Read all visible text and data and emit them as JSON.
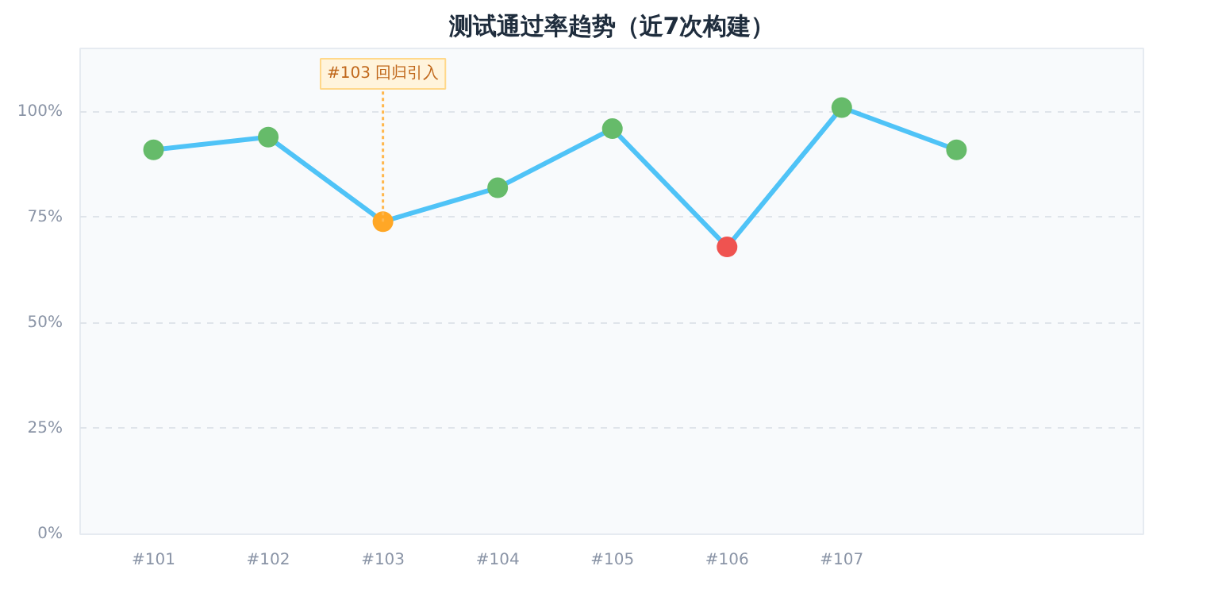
{
  "chart_data": {
    "type": "line",
    "title": "测试通过率趋势（近7次构建）",
    "categories": [
      "#101",
      "#102",
      "#103",
      "#104",
      "#105",
      "#106",
      "#107",
      null
    ],
    "series": [
      {
        "color": "#4fc3f7",
        "colors": [
          "#66bb6a",
          "#66bb6a",
          "#ffa726",
          "#66bb6a",
          "#66bb6a",
          "#ef5350",
          "#66bb6a",
          "#66bb6a"
        ],
        "values": [
          91,
          94,
          74,
          82,
          96,
          68,
          101,
          91
        ]
      }
    ],
    "annotations": [
      {
        "text": "#103 回归引入",
        "x": "#103",
        "y": 74
      }
    ],
    "ylim": [
      0,
      115
    ],
    "yticks": [
      {
        "value": 0,
        "label": "0%"
      },
      {
        "value": 25,
        "label": "25%"
      },
      {
        "value": 50,
        "label": "50%"
      },
      {
        "value": 75,
        "label": "75%"
      },
      {
        "value": 100,
        "label": "100%"
      }
    ],
    "grid": "y",
    "marker": "circle",
    "line_style": "solid"
  }
}
